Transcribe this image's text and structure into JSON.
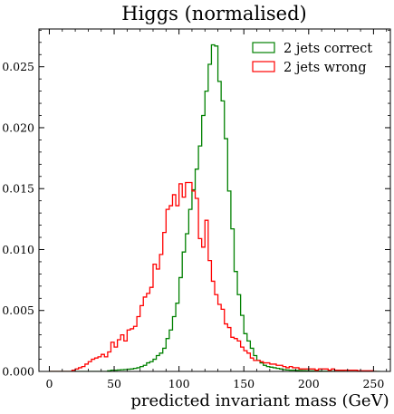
{
  "chart_data": {
    "type": "histogram",
    "title": "Higgs (normalised)",
    "xlabel": "predicted invariant mass (GeV)",
    "ylabel": "",
    "xlim": [
      -8,
      263
    ],
    "ylim": [
      0,
      0.0281
    ],
    "x_ticks": [
      0,
      50,
      100,
      150,
      200,
      250
    ],
    "x_tick_labels": [
      "0",
      "50",
      "100",
      "150",
      "200",
      "250"
    ],
    "y_ticks": [
      0.0,
      0.005,
      0.01,
      0.015,
      0.02,
      0.025
    ],
    "y_tick_labels": [
      "0.000",
      "0.005",
      "0.010",
      "0.015",
      "0.020",
      "0.025"
    ],
    "grid": false,
    "legend_position": "top-right",
    "bin_edges_start": 0,
    "bin_width": 2.5,
    "series": [
      {
        "name": "2 jets correct",
        "color": "#008000",
        "values": [
          0,
          0,
          0,
          0,
          0,
          0,
          0,
          0,
          0,
          0,
          0,
          0,
          0,
          0,
          0,
          0,
          0,
          0,
          5e-05,
          0.0001,
          0.0001,
          0.00012,
          0.00014,
          0.00016,
          0.00018,
          0.0002,
          0.00025,
          0.0003,
          0.0004,
          0.0005,
          0.0007,
          0.0008,
          0.001,
          0.0013,
          0.0015,
          0.0019,
          0.0027,
          0.0034,
          0.0045,
          0.0056,
          0.0077,
          0.0098,
          0.0113,
          0.0133,
          0.0149,
          0.0166,
          0.0185,
          0.021,
          0.023,
          0.0252,
          0.0268,
          0.0267,
          0.0238,
          0.0222,
          0.0191,
          0.0148,
          0.0117,
          0.0082,
          0.0063,
          0.0046,
          0.0031,
          0.0025,
          0.0019,
          0.0013,
          0.0009,
          0.0007,
          0.0005,
          0.0004,
          0.00035,
          0.0003,
          0.00025,
          0.0002,
          0.00015,
          0.00012,
          0.0001,
          0.0001,
          8e-05,
          7e-05,
          6e-05,
          5e-05,
          4e-05,
          4e-05,
          3e-05,
          3e-05,
          2e-05,
          2e-05,
          2e-05,
          1e-05,
          1e-05,
          1e-05,
          1e-05,
          0,
          0,
          0,
          0,
          0,
          0,
          0,
          0,
          0,
          0,
          0
        ]
      },
      {
        "name": "2 jets wrong",
        "color": "#ff0000",
        "values": [
          0,
          0,
          0,
          0,
          0,
          0,
          0,
          0.0001,
          0.0002,
          0.0003,
          0.0004,
          0.0006,
          0.0008,
          0.001,
          0.0011,
          0.0012,
          0.0014,
          0.0012,
          0.0016,
          0.0024,
          0.002,
          0.0026,
          0.003,
          0.0025,
          0.0034,
          0.0035,
          0.0037,
          0.0045,
          0.0054,
          0.0061,
          0.0064,
          0.0069,
          0.0088,
          0.0084,
          0.0096,
          0.0114,
          0.0133,
          0.0136,
          0.0145,
          0.0136,
          0.0154,
          0.0143,
          0.0155,
          0.0155,
          0.0148,
          0.0142,
          0.0109,
          0.0102,
          0.0124,
          0.0091,
          0.0074,
          0.0063,
          0.0055,
          0.0051,
          0.0039,
          0.0036,
          0.0028,
          0.0027,
          0.0025,
          0.002,
          0.0017,
          0.0015,
          0.0011,
          0.0009,
          0.0009,
          0.0008,
          0.0007,
          0.0007,
          0.0006,
          0.0006,
          0.0005,
          0.0005,
          0.0004,
          0.0003,
          0.0004,
          0.0003,
          0.0003,
          0.0002,
          0.0002,
          0.0002,
          0.0002,
          0.0002,
          0.0001,
          0.0002,
          0.0002,
          0.0002,
          0.0001,
          0.0002,
          0.0001,
          0.0001,
          0.0001,
          0.0001,
          0.0001,
          0.0001,
          0.0001,
          5e-05,
          5e-05,
          5e-05,
          5e-05,
          5e-05,
          0
        ]
      }
    ]
  }
}
